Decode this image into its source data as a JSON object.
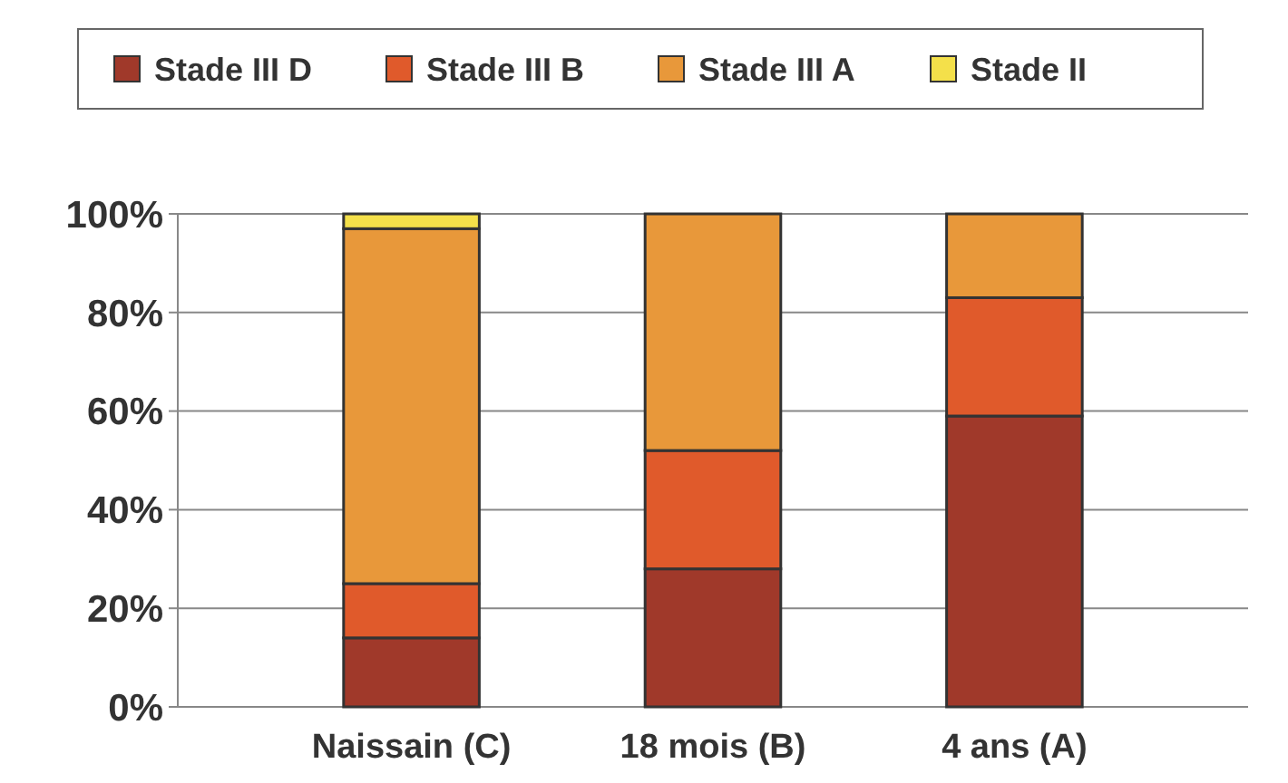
{
  "chart_data": {
    "type": "bar",
    "stacked": true,
    "categories": [
      "Naissain (C)",
      "18 mois (B)",
      "4 ans (A)"
    ],
    "series": [
      {
        "name": "Stade III D",
        "color": "#a0392a",
        "values": [
          14,
          28,
          59
        ]
      },
      {
        "name": "Stade III B",
        "color": "#e05a2b",
        "values": [
          11,
          24,
          24
        ]
      },
      {
        "name": "Stade III A",
        "color": "#e8983a",
        "values": [
          72,
          48,
          17
        ]
      },
      {
        "name": "Stade II",
        "color": "#f4e04a",
        "values": [
          3,
          0,
          0
        ]
      }
    ],
    "ylim": [
      0,
      100
    ],
    "yticks": [
      {
        "value": 0,
        "label": "0%"
      },
      {
        "value": 20,
        "label": "20%"
      },
      {
        "value": 40,
        "label": "40%"
      },
      {
        "value": 60,
        "label": "60%"
      },
      {
        "value": 80,
        "label": "80%"
      },
      {
        "value": 100,
        "label": "100%"
      }
    ],
    "grid": "y",
    "legend": "top"
  }
}
